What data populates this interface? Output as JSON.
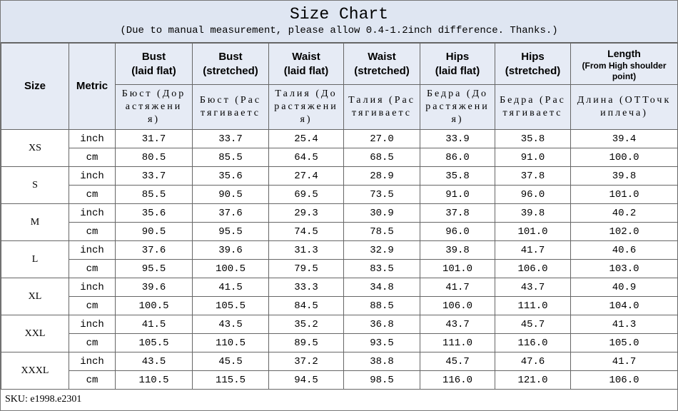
{
  "header": {
    "title": "Size Chart",
    "subtitle": "(Due to manual measurement, please allow 0.4-1.2inch difference. Thanks.)"
  },
  "table": {
    "columns": [
      {
        "en": "Size",
        "ru": ""
      },
      {
        "en": "Metric",
        "ru": ""
      },
      {
        "en": "Bust",
        "en2": "(laid flat)",
        "ru": "Бюст (Дорастяжения)"
      },
      {
        "en": "Bust",
        "en2": "(stretched)",
        "ru": "Бюст (Растягиваетс"
      },
      {
        "en": "Waist",
        "en2": "(laid flat)",
        "ru": "Талия (Дорастяжения)"
      },
      {
        "en": "Waist",
        "en2": "(stretched)",
        "ru": "Талия (Растягиваетс"
      },
      {
        "en": "Hips",
        "en2": "(laid flat)",
        "ru": "Бедра (Дорастяжения)"
      },
      {
        "en": "Hips",
        "en2": "(stretched)",
        "ru": "Бедра (Растягиваетс"
      },
      {
        "en": "Length",
        "en2": "(From High shoulder point)",
        "ru": "Длина (ОТТочкиплеча)"
      }
    ],
    "units": [
      "inch",
      "cm"
    ],
    "rows": [
      {
        "size": "XS",
        "inch": [
          "31.7",
          "33.7",
          "25.4",
          "27.0",
          "33.9",
          "35.8",
          "39.4"
        ],
        "cm": [
          "80.5",
          "85.5",
          "64.5",
          "68.5",
          "86.0",
          "91.0",
          "100.0"
        ]
      },
      {
        "size": "S",
        "inch": [
          "33.7",
          "35.6",
          "27.4",
          "28.9",
          "35.8",
          "37.8",
          "39.8"
        ],
        "cm": [
          "85.5",
          "90.5",
          "69.5",
          "73.5",
          "91.0",
          "96.0",
          "101.0"
        ]
      },
      {
        "size": "M",
        "inch": [
          "35.6",
          "37.6",
          "29.3",
          "30.9",
          "37.8",
          "39.8",
          "40.2"
        ],
        "cm": [
          "90.5",
          "95.5",
          "74.5",
          "78.5",
          "96.0",
          "101.0",
          "102.0"
        ]
      },
      {
        "size": "L",
        "inch": [
          "37.6",
          "39.6",
          "31.3",
          "32.9",
          "39.8",
          "41.7",
          "40.6"
        ],
        "cm": [
          "95.5",
          "100.5",
          "79.5",
          "83.5",
          "101.0",
          "106.0",
          "103.0"
        ]
      },
      {
        "size": "XL",
        "inch": [
          "39.6",
          "41.5",
          "33.3",
          "34.8",
          "41.7",
          "43.7",
          "40.9"
        ],
        "cm": [
          "100.5",
          "105.5",
          "84.5",
          "88.5",
          "106.0",
          "111.0",
          "104.0"
        ]
      },
      {
        "size": "XXL",
        "inch": [
          "41.5",
          "43.5",
          "35.2",
          "36.8",
          "43.7",
          "45.7",
          "41.3"
        ],
        "cm": [
          "105.5",
          "110.5",
          "89.5",
          "93.5",
          "111.0",
          "116.0",
          "105.0"
        ]
      },
      {
        "size": "XXXL",
        "inch": [
          "43.5",
          "45.5",
          "37.2",
          "38.8",
          "45.7",
          "47.6",
          "41.7"
        ],
        "cm": [
          "110.5",
          "115.5",
          "94.5",
          "98.5",
          "116.0",
          "121.0",
          "106.0"
        ]
      }
    ]
  },
  "footer": {
    "sku": "SKU: e1998.e2301"
  }
}
